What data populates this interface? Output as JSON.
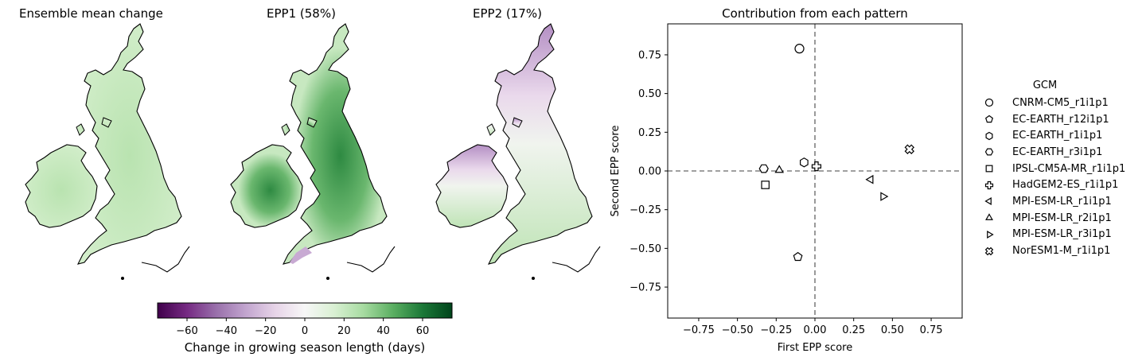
{
  "maps": [
    {
      "title": "Ensemble mean change",
      "pattern": "mean"
    },
    {
      "title": "EPP1 (58%)",
      "pattern": "epp1"
    },
    {
      "title": "EPP2 (17%)",
      "pattern": "epp2"
    }
  ],
  "colorbar": {
    "label": "Change in growing season length (days)",
    "ticks": [
      "−60",
      "−40",
      "−20",
      "0",
      "20",
      "40",
      "60"
    ],
    "tick_values": [
      -60,
      -40,
      -20,
      0,
      20,
      40,
      60
    ],
    "range": [
      -75,
      75
    ],
    "colormap": "PRGn",
    "colors": [
      "#40004b",
      "#762a83",
      "#9970ab",
      "#c2a5cf",
      "#e7d4e8",
      "#f7f7f7",
      "#d9f0d3",
      "#a6dba0",
      "#5aae61",
      "#1b7837",
      "#00441b"
    ]
  },
  "chart_data": {
    "type": "scatter",
    "title": "Contribution from each pattern",
    "xlabel": "First EPP score",
    "ylabel": "Second EPP score",
    "xlim": [
      -0.95,
      0.95
    ],
    "ylim": [
      -0.95,
      0.95
    ],
    "xticks": [
      -0.75,
      -0.5,
      -0.25,
      0,
      0.25,
      0.5,
      0.75
    ],
    "xtick_labels": [
      "−0.75",
      "−0.50",
      "−0.25",
      "0.00",
      "0.25",
      "0.50",
      "0.75"
    ],
    "yticks": [
      -0.75,
      -0.5,
      -0.25,
      0,
      0.25,
      0.5,
      0.75
    ],
    "ytick_labels": [
      "−0.75",
      "−0.50",
      "−0.25",
      "0.00",
      "0.25",
      "0.50",
      "0.75"
    ],
    "reference_lines": {
      "x": 0,
      "y": 0,
      "style": "dashed",
      "color": "#808080"
    },
    "grid": false,
    "legend_title": "GCM",
    "legend_position": "outside right",
    "points": [
      {
        "name": "CNRM-CM5_r1i1p1",
        "marker": "circle",
        "x": -0.1,
        "y": 0.79
      },
      {
        "name": "EC-EARTH_r12i1p1",
        "marker": "pentagon",
        "x": -0.11,
        "y": -0.555
      },
      {
        "name": "EC-EARTH_r1i1p1",
        "marker": "hexagon-pointy",
        "x": -0.07,
        "y": 0.055
      },
      {
        "name": "EC-EARTH_r3i1p1",
        "marker": "hexagon-flat",
        "x": -0.33,
        "y": 0.015
      },
      {
        "name": "IPSL-CM5A-MR_r1i1p1",
        "marker": "square",
        "x": -0.32,
        "y": -0.09
      },
      {
        "name": "HadGEM2-ES_r1i1p1",
        "marker": "plus",
        "x": 0.01,
        "y": 0.03
      },
      {
        "name": "MPI-ESM-LR_r1i1p1",
        "marker": "triangle-left",
        "x": 0.36,
        "y": -0.055
      },
      {
        "name": "MPI-ESM-LR_r2i1p1",
        "marker": "triangle-up",
        "x": -0.23,
        "y": 0.005
      },
      {
        "name": "MPI-ESM-LR_r3i1p1",
        "marker": "triangle-right",
        "x": 0.44,
        "y": -0.165
      },
      {
        "name": "NorESM1-M_r1i1p1",
        "marker": "x-filled",
        "x": 0.61,
        "y": 0.14
      }
    ]
  }
}
